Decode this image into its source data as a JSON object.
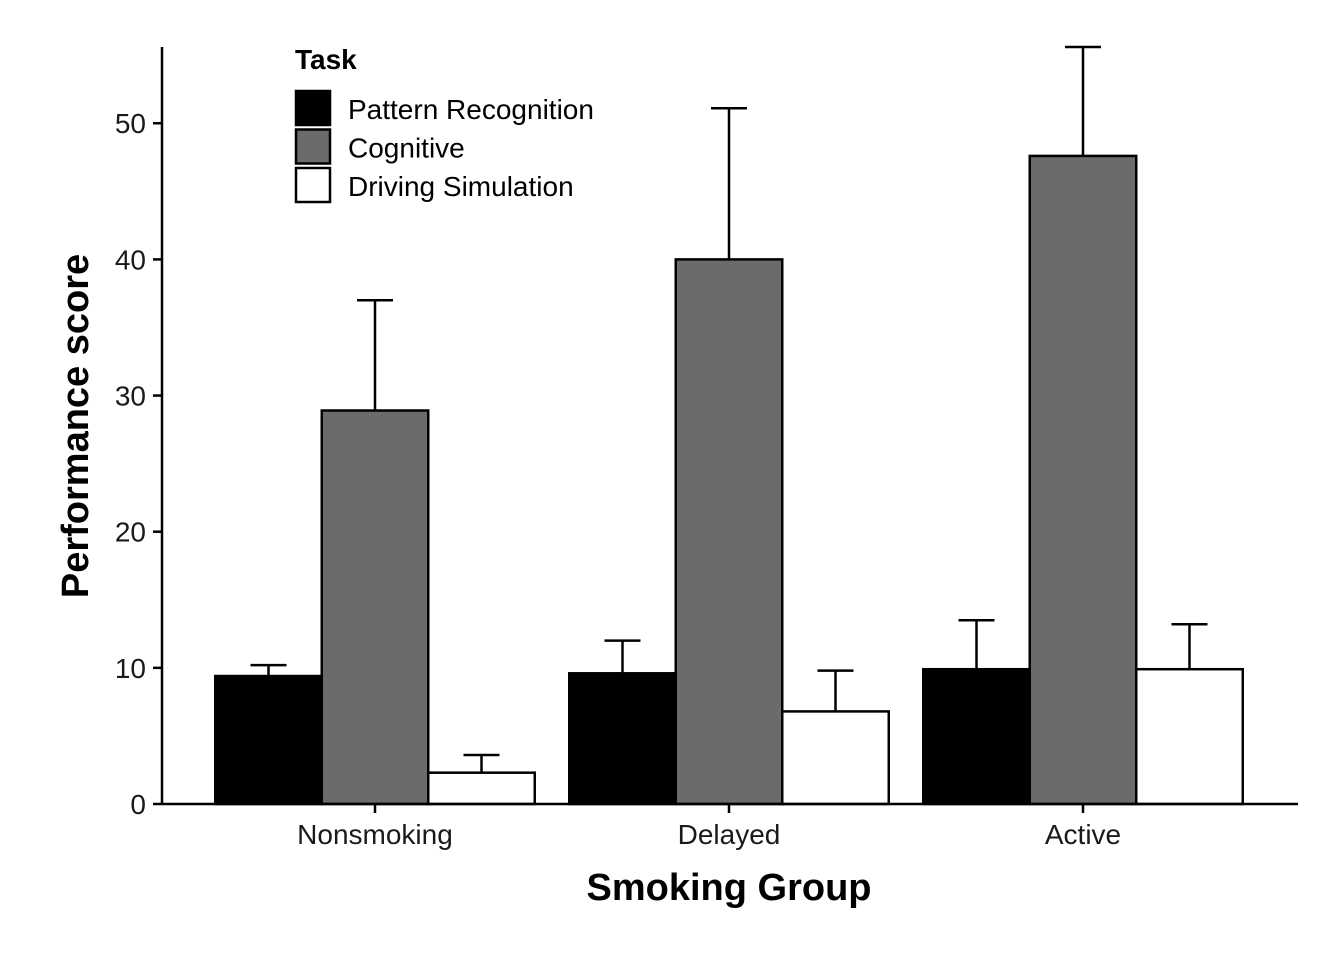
{
  "chart_data": {
    "type": "bar",
    "xlabel": "Smoking Group",
    "ylabel": "Performance score",
    "categories": [
      "Nonsmoking",
      "Delayed",
      "Active"
    ],
    "ylim": [
      0,
      55.6
    ],
    "yticks": [
      0,
      10,
      20,
      30,
      40,
      50
    ],
    "legend": {
      "title": "Task",
      "position": "top-left"
    },
    "grid": false,
    "series": [
      {
        "name": "Pattern Recognition",
        "color": "#000000",
        "values": [
          9.4,
          9.6,
          9.9
        ],
        "error": [
          0.8,
          2.4,
          3.6
        ]
      },
      {
        "name": "Cognitive",
        "color": "#6b6b6b",
        "values": [
          28.9,
          40.0,
          47.6
        ],
        "error": [
          8.1,
          11.1,
          8.0
        ]
      },
      {
        "name": "Driving Simulation",
        "color": "#ffffff",
        "values": [
          2.3,
          6.8,
          9.9
        ],
        "error": [
          1.3,
          3.0,
          3.3
        ]
      }
    ]
  }
}
